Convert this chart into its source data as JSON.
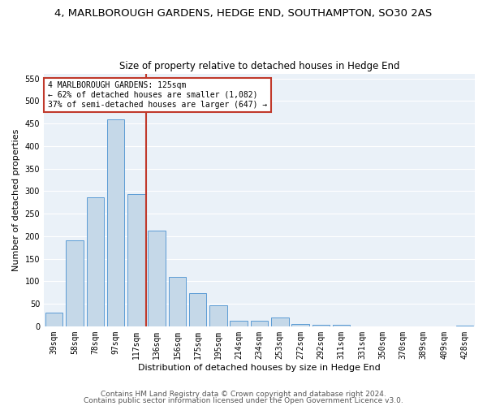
{
  "title": "4, MARLBOROUGH GARDENS, HEDGE END, SOUTHAMPTON, SO30 2AS",
  "subtitle": "Size of property relative to detached houses in Hedge End",
  "xlabel": "Distribution of detached houses by size in Hedge End",
  "ylabel": "Number of detached properties",
  "categories": [
    "39sqm",
    "58sqm",
    "78sqm",
    "97sqm",
    "117sqm",
    "136sqm",
    "156sqm",
    "175sqm",
    "195sqm",
    "214sqm",
    "234sqm",
    "253sqm",
    "272sqm",
    "292sqm",
    "311sqm",
    "331sqm",
    "350sqm",
    "370sqm",
    "389sqm",
    "409sqm",
    "428sqm"
  ],
  "values": [
    30,
    190,
    287,
    460,
    293,
    213,
    110,
    73,
    47,
    12,
    12,
    19,
    6,
    4,
    4,
    0,
    0,
    0,
    0,
    0,
    2
  ],
  "bar_color": "#c5d8e8",
  "bar_edge_color": "#5b9bd5",
  "vline_color": "#c0392b",
  "annotation_box_text": "4 MARLBOROUGH GARDENS: 125sqm\n← 62% of detached houses are smaller (1,082)\n37% of semi-detached houses are larger (647) →",
  "annotation_box_color": "#c0392b",
  "ylim": [
    0,
    560
  ],
  "yticks": [
    0,
    50,
    100,
    150,
    200,
    250,
    300,
    350,
    400,
    450,
    500,
    550
  ],
  "bg_color": "#eaf1f8",
  "footer_line1": "Contains HM Land Registry data © Crown copyright and database right 2024.",
  "footer_line2": "Contains public sector information licensed under the Open Government Licence v3.0.",
  "title_fontsize": 9.5,
  "subtitle_fontsize": 8.5,
  "xlabel_fontsize": 8,
  "ylabel_fontsize": 8,
  "tick_fontsize": 7,
  "footer_fontsize": 6.5,
  "annot_fontsize": 7
}
